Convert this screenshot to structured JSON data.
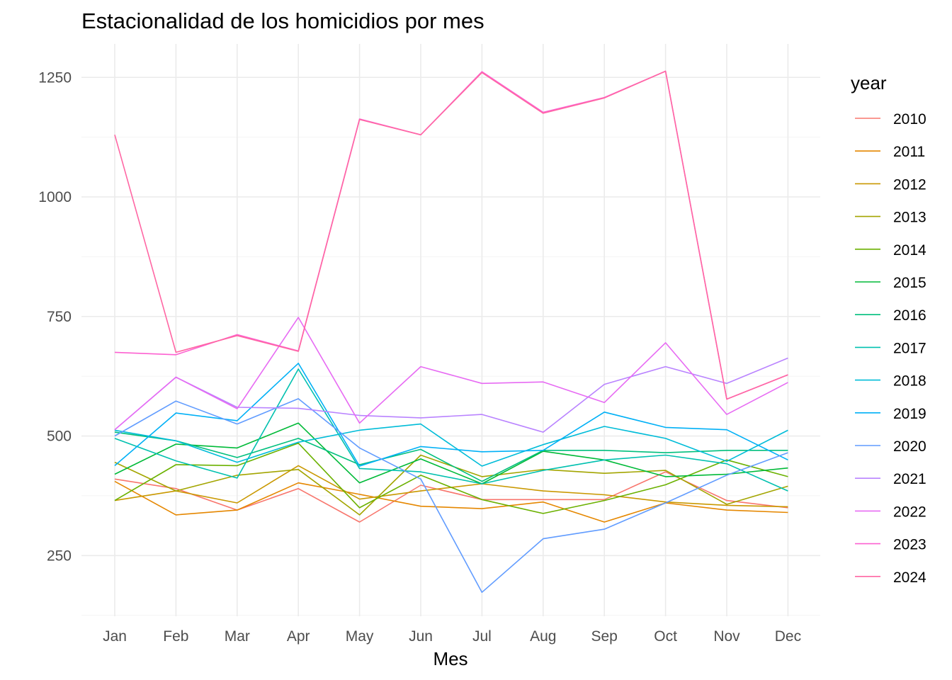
{
  "chart_data": {
    "type": "line",
    "title": "Estacionalidad de los homicidios por mes",
    "xlabel": "Mes",
    "ylabel": "",
    "legend_title": "year",
    "legend_position": "right",
    "grid": true,
    "categories": [
      "Jan",
      "Feb",
      "Mar",
      "Apr",
      "May",
      "Jun",
      "Jul",
      "Aug",
      "Sep",
      "Oct",
      "Nov",
      "Dec"
    ],
    "y_ticks": [
      250,
      500,
      750,
      1000,
      1250
    ],
    "ylim": [
      123,
      1320
    ],
    "series": [
      {
        "name": "2010",
        "color": "#F8766D",
        "values": [
          410,
          390,
          345,
          390,
          320,
          397,
          367,
          367,
          367,
          425,
          365,
          350
        ]
      },
      {
        "name": "2011",
        "color": "#E58700",
        "values": [
          405,
          335,
          345,
          402,
          378,
          353,
          348,
          362,
          320,
          360,
          345,
          340
        ]
      },
      {
        "name": "2012",
        "color": "#C99800",
        "values": [
          365,
          385,
          360,
          438,
          368,
          385,
          400,
          385,
          377,
          362,
          355,
          352
        ]
      },
      {
        "name": "2013",
        "color": "#A3A500",
        "values": [
          445,
          385,
          418,
          430,
          335,
          460,
          415,
          430,
          422,
          428,
          357,
          395
        ]
      },
      {
        "name": "2014",
        "color": "#6BB100",
        "values": [
          365,
          440,
          438,
          485,
          350,
          418,
          367,
          338,
          365,
          398,
          450,
          415
        ]
      },
      {
        "name": "2015",
        "color": "#00BA38",
        "values": [
          420,
          483,
          475,
          527,
          402,
          452,
          400,
          468,
          450,
          415,
          420,
          433
        ]
      },
      {
        "name": "2016",
        "color": "#00BF7D",
        "values": [
          508,
          490,
          455,
          495,
          440,
          472,
          405,
          470,
          470,
          465,
          470,
          470
        ]
      },
      {
        "name": "2017",
        "color": "#00C0AF",
        "values": [
          495,
          448,
          412,
          640,
          432,
          425,
          400,
          428,
          450,
          460,
          442,
          385
        ]
      },
      {
        "name": "2018",
        "color": "#00BCD8",
        "values": [
          512,
          490,
          445,
          487,
          512,
          525,
          437,
          482,
          520,
          495,
          447,
          512
        ]
      },
      {
        "name": "2019",
        "color": "#00B0F6",
        "values": [
          438,
          548,
          532,
          652,
          437,
          478,
          467,
          470,
          550,
          518,
          513,
          450
        ]
      },
      {
        "name": "2020",
        "color": "#619CFF",
        "values": [
          500,
          573,
          525,
          578,
          475,
          410,
          173,
          285,
          305,
          360,
          418,
          465
        ]
      },
      {
        "name": "2021",
        "color": "#B983FF",
        "values": [
          513,
          623,
          560,
          558,
          543,
          538,
          545,
          508,
          608,
          645,
          610,
          663
        ]
      },
      {
        "name": "2022",
        "color": "#E76BF3",
        "values": [
          513,
          623,
          557,
          748,
          527,
          645,
          610,
          613,
          570,
          695,
          545,
          612
        ]
      },
      {
        "name": "2023",
        "color": "#FD61D1",
        "values": [
          675,
          670,
          712,
          678,
          1163,
          1130,
          1262,
          1177,
          1208,
          1263,
          577,
          628
        ]
      },
      {
        "name": "2024",
        "color": "#FF67A4",
        "values": [
          1130,
          675,
          710,
          677,
          1162,
          1130,
          1260,
          1175,
          1207,
          1263,
          577,
          628
        ]
      }
    ]
  }
}
